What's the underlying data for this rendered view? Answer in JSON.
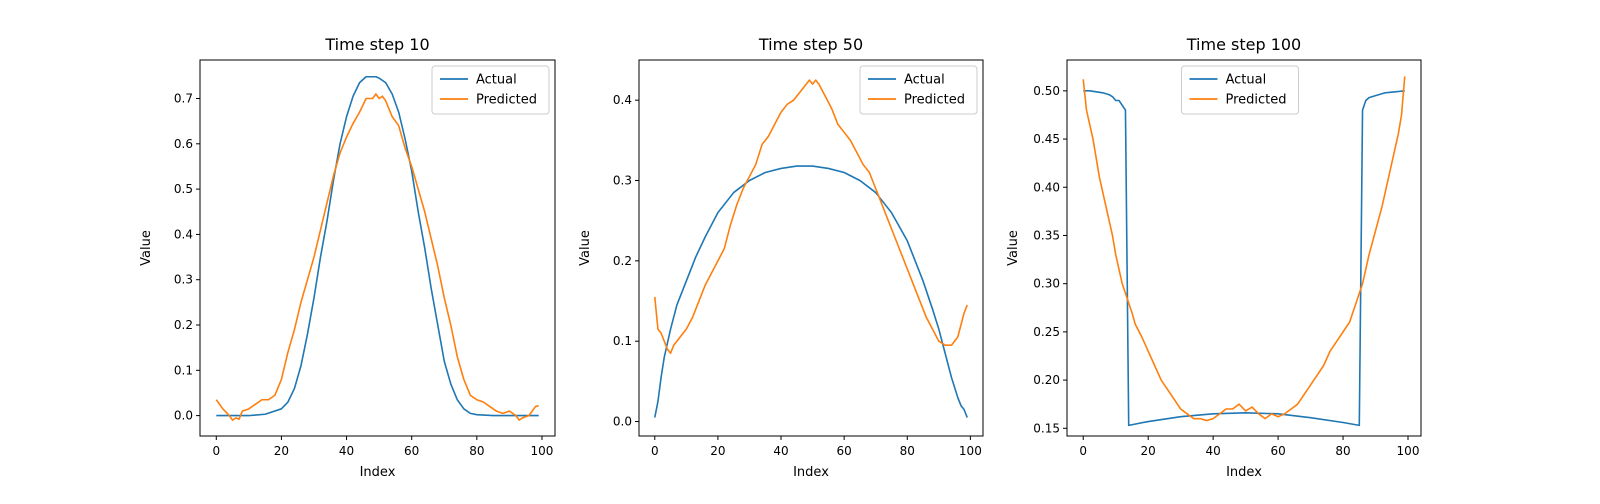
{
  "colors": {
    "actual": "#1f77b4",
    "predicted": "#ff7f0e",
    "axis": "#000000",
    "legend_border": "#cccccc"
  },
  "chart_data": [
    {
      "type": "line",
      "title": "Time step 10",
      "xlabel": "Index",
      "ylabel": "Value",
      "xlim": [
        -5,
        104
      ],
      "ylim": [
        -0.045,
        0.785
      ],
      "xticks": [
        0,
        20,
        40,
        60,
        80,
        100
      ],
      "yticks": [
        0.0,
        0.1,
        0.2,
        0.3,
        0.4,
        0.5,
        0.6,
        0.7
      ],
      "ytick_labels": [
        "0.0",
        "0.1",
        "0.2",
        "0.3",
        "0.4",
        "0.5",
        "0.6",
        "0.7"
      ],
      "grid": false,
      "legend": "top-right",
      "series": [
        {
          "name": "Actual",
          "color": "#1f77b4",
          "x": [
            0,
            5,
            10,
            15,
            20,
            22,
            24,
            26,
            28,
            30,
            32,
            34,
            36,
            38,
            40,
            42,
            44,
            46,
            48,
            49,
            50,
            52,
            54,
            56,
            58,
            60,
            62,
            64,
            66,
            68,
            70,
            72,
            74,
            76,
            78,
            80,
            85,
            90,
            95,
            99
          ],
          "y": [
            0,
            0,
            0,
            0.003,
            0.015,
            0.03,
            0.06,
            0.11,
            0.18,
            0.26,
            0.35,
            0.43,
            0.52,
            0.6,
            0.66,
            0.705,
            0.735,
            0.748,
            0.748,
            0.748,
            0.745,
            0.735,
            0.71,
            0.67,
            0.61,
            0.54,
            0.45,
            0.37,
            0.28,
            0.2,
            0.12,
            0.07,
            0.035,
            0.015,
            0.005,
            0.002,
            0,
            0,
            0,
            0
          ]
        },
        {
          "name": "Predicted",
          "color": "#ff7f0e",
          "x": [
            0,
            2,
            4,
            5,
            6,
            7,
            8,
            10,
            12,
            14,
            16,
            18,
            20,
            22,
            24,
            26,
            28,
            30,
            32,
            34,
            36,
            38,
            40,
            42,
            44,
            46,
            48,
            49,
            50,
            51,
            52,
            54,
            56,
            58,
            60,
            62,
            64,
            66,
            68,
            70,
            72,
            74,
            76,
            78,
            80,
            82,
            84,
            86,
            88,
            90,
            92,
            93,
            94,
            96,
            98,
            99
          ],
          "y": [
            0.035,
            0.015,
            0.0,
            -0.01,
            -0.005,
            -0.008,
            0.01,
            0.015,
            0.025,
            0.035,
            0.035,
            0.045,
            0.08,
            0.14,
            0.19,
            0.25,
            0.3,
            0.35,
            0.41,
            0.47,
            0.53,
            0.58,
            0.615,
            0.645,
            0.67,
            0.7,
            0.7,
            0.71,
            0.7,
            0.705,
            0.695,
            0.66,
            0.64,
            0.59,
            0.55,
            0.5,
            0.45,
            0.39,
            0.33,
            0.26,
            0.2,
            0.13,
            0.08,
            0.045,
            0.035,
            0.03,
            0.02,
            0.01,
            0.005,
            0.01,
            0.0,
            -0.01,
            -0.005,
            0.0,
            0.02,
            0.022
          ]
        }
      ]
    },
    {
      "type": "line",
      "title": "Time step 50",
      "xlabel": "Index",
      "ylabel": "Value",
      "xlim": [
        -5,
        104
      ],
      "ylim": [
        -0.018,
        0.45
      ],
      "xticks": [
        0,
        20,
        40,
        60,
        80,
        100
      ],
      "yticks": [
        0.0,
        0.1,
        0.2,
        0.3,
        0.4
      ],
      "ytick_labels": [
        "0.0",
        "0.1",
        "0.2",
        "0.3",
        "0.4"
      ],
      "grid": false,
      "legend": "top-right",
      "series": [
        {
          "name": "Actual",
          "color": "#1f77b4",
          "x": [
            0,
            1,
            2,
            3,
            5,
            7,
            10,
            13,
            16,
            20,
            25,
            30,
            35,
            40,
            45,
            50,
            55,
            60,
            65,
            70,
            75,
            80,
            85,
            88,
            90,
            92,
            94,
            96,
            97,
            98,
            99
          ],
          "y": [
            0.005,
            0.025,
            0.055,
            0.08,
            0.115,
            0.145,
            0.175,
            0.205,
            0.23,
            0.26,
            0.285,
            0.3,
            0.31,
            0.315,
            0.318,
            0.318,
            0.315,
            0.31,
            0.3,
            0.285,
            0.26,
            0.225,
            0.175,
            0.14,
            0.115,
            0.085,
            0.055,
            0.03,
            0.02,
            0.015,
            0.005
          ]
        },
        {
          "name": "Predicted",
          "color": "#ff7f0e",
          "x": [
            0,
            1,
            2,
            3,
            4,
            5,
            6,
            7,
            8,
            10,
            12,
            14,
            16,
            18,
            20,
            22,
            24,
            26,
            28,
            30,
            32,
            34,
            36,
            38,
            40,
            42,
            44,
            46,
            48,
            49,
            50,
            51,
            52,
            54,
            56,
            58,
            60,
            62,
            64,
            66,
            68,
            70,
            72,
            74,
            76,
            78,
            80,
            82,
            84,
            86,
            88,
            90,
            92,
            94,
            96,
            97,
            98,
            99
          ],
          "y": [
            0.155,
            0.115,
            0.11,
            0.1,
            0.09,
            0.085,
            0.095,
            0.1,
            0.105,
            0.115,
            0.13,
            0.15,
            0.17,
            0.185,
            0.2,
            0.215,
            0.245,
            0.27,
            0.29,
            0.305,
            0.32,
            0.345,
            0.355,
            0.37,
            0.385,
            0.395,
            0.4,
            0.41,
            0.42,
            0.425,
            0.42,
            0.425,
            0.42,
            0.405,
            0.39,
            0.37,
            0.36,
            0.35,
            0.335,
            0.32,
            0.31,
            0.29,
            0.27,
            0.25,
            0.23,
            0.21,
            0.19,
            0.17,
            0.15,
            0.13,
            0.115,
            0.1,
            0.095,
            0.095,
            0.105,
            0.12,
            0.135,
            0.145
          ]
        }
      ]
    },
    {
      "type": "line",
      "title": "Time step 100",
      "xlabel": "Index",
      "ylabel": "Value",
      "xlim": [
        -5,
        104
      ],
      "ylim": [
        0.142,
        0.532
      ],
      "xticks": [
        0,
        20,
        40,
        60,
        80,
        100
      ],
      "yticks": [
        0.15,
        0.2,
        0.25,
        0.3,
        0.35,
        0.4,
        0.45,
        0.5
      ],
      "ytick_labels": [
        "0.15",
        "0.20",
        "0.25",
        "0.30",
        "0.35",
        "0.40",
        "0.45",
        "0.50"
      ],
      "grid": false,
      "legend": "top-center",
      "series": [
        {
          "name": "Actual",
          "color": "#1f77b4",
          "x": [
            0,
            2,
            4,
            6,
            8,
            9,
            10,
            11,
            12,
            13,
            14,
            20,
            30,
            40,
            50,
            60,
            70,
            80,
            85,
            86,
            87,
            88,
            90,
            93,
            96,
            99
          ],
          "y": [
            0.5,
            0.5,
            0.499,
            0.498,
            0.496,
            0.494,
            0.49,
            0.49,
            0.485,
            0.48,
            0.153,
            0.157,
            0.162,
            0.165,
            0.166,
            0.165,
            0.161,
            0.156,
            0.153,
            0.48,
            0.49,
            0.493,
            0.495,
            0.498,
            0.499,
            0.5
          ]
        },
        {
          "name": "Predicted",
          "color": "#ff7f0e",
          "x": [
            0,
            1,
            2,
            3,
            4,
            5,
            6,
            7,
            8,
            9,
            10,
            11,
            12,
            13,
            14,
            15,
            16,
            18,
            20,
            22,
            24,
            26,
            28,
            30,
            32,
            34,
            36,
            38,
            40,
            42,
            44,
            46,
            48,
            50,
            52,
            54,
            56,
            58,
            60,
            62,
            64,
            66,
            68,
            70,
            72,
            74,
            76,
            78,
            80,
            82,
            84,
            86,
            88,
            90,
            92,
            94,
            96,
            97,
            98,
            99
          ],
          "y": [
            0.512,
            0.48,
            0.465,
            0.45,
            0.43,
            0.41,
            0.395,
            0.38,
            0.365,
            0.35,
            0.33,
            0.315,
            0.3,
            0.29,
            0.28,
            0.27,
            0.258,
            0.245,
            0.23,
            0.215,
            0.2,
            0.19,
            0.18,
            0.17,
            0.165,
            0.16,
            0.16,
            0.158,
            0.16,
            0.165,
            0.17,
            0.17,
            0.175,
            0.168,
            0.172,
            0.165,
            0.16,
            0.165,
            0.162,
            0.165,
            0.17,
            0.175,
            0.185,
            0.195,
            0.205,
            0.215,
            0.23,
            0.24,
            0.25,
            0.26,
            0.28,
            0.3,
            0.33,
            0.355,
            0.38,
            0.41,
            0.44,
            0.455,
            0.475,
            0.515
          ]
        }
      ]
    }
  ]
}
